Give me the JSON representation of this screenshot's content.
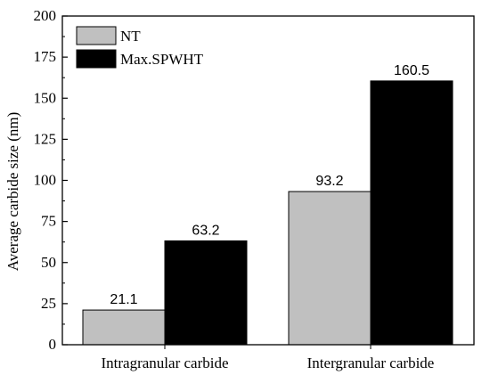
{
  "chart_data": {
    "type": "bar",
    "categories": [
      "Intragranular carbide",
      "Intergranular carbide"
    ],
    "series": [
      {
        "name": "NT",
        "values": [
          21.1,
          93.2
        ],
        "color": "#c0c0c0"
      },
      {
        "name": "Max.SPWHT",
        "values": [
          63.2,
          160.5
        ],
        "color": "#000000"
      }
    ],
    "title": "",
    "xlabel": "",
    "ylabel": "Average carbide size (nm)",
    "ylim": [
      0,
      200
    ],
    "yticks": [
      0,
      25,
      50,
      75,
      100,
      125,
      150,
      175,
      200
    ],
    "data_labels": [
      "21.1",
      "63.2",
      "93.2",
      "160.5"
    ],
    "legend_position": "top-left",
    "grid": false
  }
}
